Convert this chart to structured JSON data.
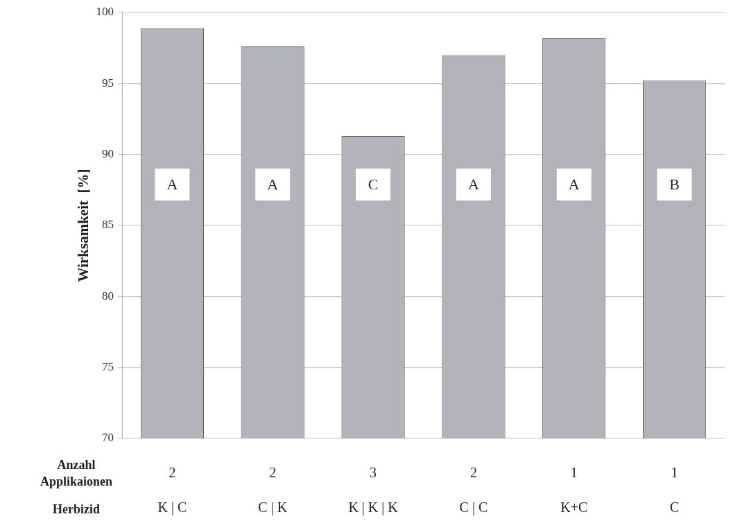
{
  "chart_data": {
    "type": "bar",
    "ylabel": "Wirksamkeit  [%]",
    "categories": [
      "2\nK | C",
      "2\nC | K",
      "3\nK | K | K",
      "2\nC | C",
      "1\nK+C",
      "1\nC"
    ],
    "values": [
      98.9,
      97.6,
      91.3,
      97.0,
      98.2,
      95.2
    ],
    "color": "#b2b3b6",
    "ylim": [
      70,
      100
    ],
    "yticks": [
      70,
      75,
      80,
      85,
      90,
      95,
      100
    ],
    "grid": "y",
    "legend": false,
    "annotations": [
      "Anzahl Applikaionen",
      "Herbizid",
      "A",
      "A",
      "C",
      "A",
      "A",
      "B"
    ]
  }
}
